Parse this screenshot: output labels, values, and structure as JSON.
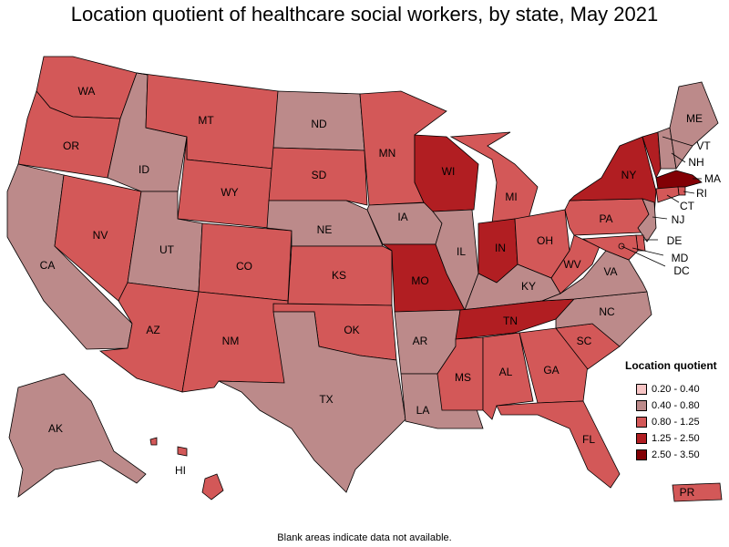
{
  "title": "Location quotient of healthcare social workers, by state, May 2021",
  "footnote": "Blank areas indicate data not available.",
  "legend": {
    "title": "Location quotient",
    "items": [
      {
        "label": "0.20 - 0.40",
        "color": "#f7c5c5"
      },
      {
        "label": "0.40 - 0.80",
        "color": "#bc8a8a"
      },
      {
        "label": "0.80 - 1.25",
        "color": "#d35858"
      },
      {
        "label": "1.25 - 2.50",
        "color": "#b11e22"
      },
      {
        "label": "2.50 - 3.50",
        "color": "#820005"
      }
    ]
  },
  "states": {
    "WA": "0.80 - 1.25",
    "OR": "0.80 - 1.25",
    "CA": "0.40 - 0.80",
    "NV": "0.80 - 1.25",
    "ID": "0.40 - 0.80",
    "MT": "0.80 - 1.25",
    "WY": "0.80 - 1.25",
    "UT": "0.40 - 0.80",
    "AZ": "0.80 - 1.25",
    "CO": "0.80 - 1.25",
    "NM": "0.80 - 1.25",
    "ND": "0.40 - 0.80",
    "SD": "0.80 - 1.25",
    "NE": "0.40 - 0.80",
    "KS": "0.80 - 1.25",
    "OK": "0.80 - 1.25",
    "TX": "0.40 - 0.80",
    "MN": "0.80 - 1.25",
    "IA": "0.40 - 0.80",
    "MO": "1.25 - 2.50",
    "AR": "0.40 - 0.80",
    "LA": "0.40 - 0.80",
    "WI": "1.25 - 2.50",
    "IL": "0.40 - 0.80",
    "MI": "0.80 - 1.25",
    "IN": "1.25 - 2.50",
    "OH": "0.80 - 1.25",
    "KY": "0.40 - 0.80",
    "TN": "1.25 - 2.50",
    "MS": "0.80 - 1.25",
    "AL": "0.80 - 1.25",
    "GA": "0.80 - 1.25",
    "FL": "0.80 - 1.25",
    "SC": "0.80 - 1.25",
    "NC": "0.40 - 0.80",
    "VA": "0.40 - 0.80",
    "WV": "0.80 - 1.25",
    "PA": "0.80 - 1.25",
    "NY": "1.25 - 2.50",
    "VT": "1.25 - 2.50",
    "NH": "0.40 - 0.80",
    "ME": "0.40 - 0.80",
    "MA": "2.50 - 3.50",
    "RI": "0.80 - 1.25",
    "CT": "0.80 - 1.25",
    "NJ": "0.40 - 0.80",
    "DE": "0.80 - 1.25",
    "MD": "0.80 - 1.25",
    "DC": "0.80 - 1.25",
    "AK": "0.40 - 0.80",
    "HI": "0.80 - 1.25",
    "PR": "0.80 - 1.25"
  }
}
